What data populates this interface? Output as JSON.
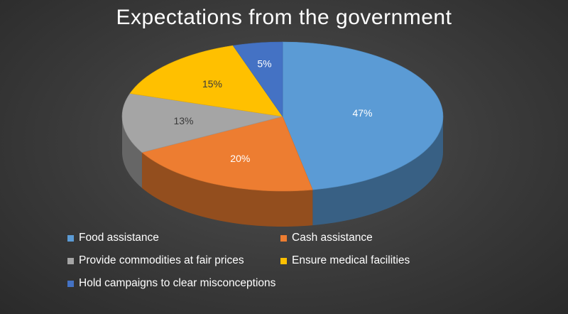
{
  "chart_data": {
    "type": "pie",
    "title": "Expectations from the government",
    "categories": [
      "Food assistance",
      "Cash assistance",
      "Provide commodities at fair prices",
      "Ensure medical facilities",
      "Hold campaigns to clear misconceptions"
    ],
    "values": [
      47,
      20,
      13,
      15,
      5
    ],
    "data_labels": [
      "47%",
      "20%",
      "13%",
      "15%",
      "5%"
    ],
    "colors": [
      "#5b9bd5",
      "#ed7d31",
      "#a5a5a5",
      "#ffc000",
      "#4472c4"
    ],
    "legend_position": "bottom",
    "style": "3d-pie"
  }
}
